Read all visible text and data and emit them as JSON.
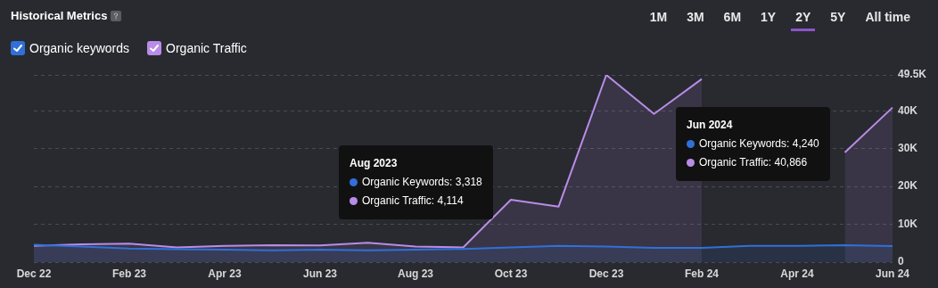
{
  "chart_data": {
    "type": "area",
    "title": "Historical Metrics",
    "categories": [
      "Dec 22",
      null,
      "Feb 23",
      null,
      "Apr 23",
      null,
      "Jun 23",
      null,
      "Aug 23",
      null,
      "Oct 23",
      null,
      "Dec 23",
      null,
      "Feb 24",
      null,
      "Apr 24",
      null,
      "Jun 24"
    ],
    "series": [
      {
        "name": "Organic keywords",
        "color": "#3070d8",
        "values": [
          4600,
          4100,
          3600,
          3400,
          3300,
          3100,
          3300,
          3100,
          3318,
          3500,
          3900,
          4300,
          4100,
          3800,
          3800,
          4300,
          4300,
          4500,
          4240
        ]
      },
      {
        "name": "Organic Traffic",
        "color": "#b98ce8",
        "values": [
          4300,
          4700,
          4900,
          3900,
          4300,
          4500,
          4400,
          5100,
          4114,
          3900,
          16500,
          14700,
          49500,
          39200,
          48400,
          null,
          null,
          29000,
          40866
        ]
      }
    ],
    "ylim": [
      0,
      49500
    ],
    "yticks": [
      0,
      {
        "value": 10000,
        "label": "10K"
      },
      {
        "value": 20000,
        "label": "20K"
      },
      {
        "value": 30000,
        "label": "30K"
      },
      {
        "value": 40000,
        "label": "40K"
      },
      {
        "value": 49500,
        "label": "49.5K"
      }
    ],
    "grid": "y",
    "legend": "top left",
    "marker": "none",
    "annotations": [
      "1M",
      "3M",
      "6M",
      "1Y",
      "2Y",
      "5Y",
      "All time",
      "Aug 2023\nOrganic Keywords: 3,318\nOrganic Traffic: 4,114",
      "Jun 2024\nOrganic Keywords: 4,240\nOrganic Traffic: 40,866"
    ]
  }
}
